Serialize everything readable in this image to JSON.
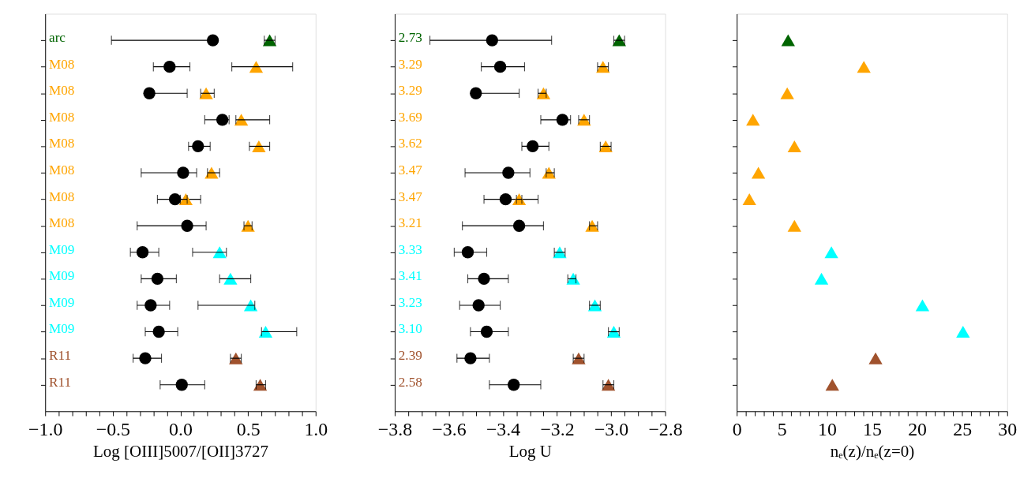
{
  "chart_data": [
    {
      "type": "scatter",
      "orientation": "horizontal",
      "xlabel": "Log [OIII]5007/[OII]3727",
      "tick_labels": "x",
      "grid": false,
      "categories": [
        "arc",
        "M08",
        "M08",
        "M08",
        "M08",
        "M08",
        "M08",
        "M08",
        "M09",
        "M09",
        "M09",
        "M09",
        "R11",
        "R11"
      ],
      "xlim": [
        -1.0,
        1.0
      ],
      "xticks": [
        {
          "value": -1.0,
          "label": "−1.0"
        },
        {
          "value": -0.9,
          "label": null
        },
        {
          "value": -0.8,
          "label": null
        },
        {
          "value": -0.7,
          "label": null
        },
        {
          "value": -0.6,
          "label": null
        },
        {
          "value": -0.5,
          "label": "−0.5"
        },
        {
          "value": -0.4,
          "label": null
        },
        {
          "value": -0.3,
          "label": null
        },
        {
          "value": -0.2,
          "label": null
        },
        {
          "value": -0.1,
          "label": null
        },
        {
          "value": 0.0,
          "label": "0.0"
        },
        {
          "value": 0.1,
          "label": null
        },
        {
          "value": 0.2,
          "label": null
        },
        {
          "value": 0.3,
          "label": null
        },
        {
          "value": 0.4,
          "label": null
        },
        {
          "value": 0.5,
          "label": "0.5"
        },
        {
          "value": 0.6,
          "label": null
        },
        {
          "value": 0.7,
          "label": null
        },
        {
          "value": 0.8,
          "label": null
        },
        {
          "value": 0.9,
          "label": null
        },
        {
          "value": 1.0,
          "label": "1.0"
        }
      ],
      "series": [
        {
          "color": "#000000",
          "marker": "circle",
          "values": [
            0.24,
            -0.08,
            -0.23,
            0.31,
            0.13,
            0.02,
            -0.04,
            0.05,
            -0.28,
            -0.17,
            -0.22,
            -0.16,
            -0.26,
            0.01
          ],
          "errors": [
            [
              -0.51,
              0.24
            ],
            [
              -0.2,
              0.07
            ],
            [
              -0.23,
              0.05
            ],
            [
              0.18,
              0.36
            ],
            [
              0.06,
              0.22
            ],
            [
              -0.29,
              0.12
            ],
            [
              -0.17,
              0.15
            ],
            [
              -0.32,
              0.19
            ],
            [
              -0.37,
              -0.16
            ],
            [
              -0.29,
              -0.03
            ],
            [
              -0.32,
              -0.08
            ],
            [
              -0.26,
              -0.02
            ],
            [
              -0.35,
              -0.14
            ],
            [
              -0.15,
              0.18
            ]
          ]
        },
        {
          "marker": "triangle",
          "colors": [
            "#006400",
            "#ffa500",
            "#ffa500",
            "#ffa500",
            "#ffa500",
            "#ffa500",
            "#ffa500",
            "#ffa500",
            "#00ffff",
            "#00ffff",
            "#00ffff",
            "#00ffff",
            "#a0522d",
            "#a0522d"
          ],
          "values": [
            0.66,
            0.56,
            0.19,
            0.45,
            0.58,
            0.23,
            0.04,
            0.5,
            0.29,
            0.37,
            0.52,
            0.63,
            0.41,
            0.59
          ],
          "errors": [
            [
              0.62,
              0.7
            ],
            [
              0.38,
              0.83
            ],
            [
              0.15,
              0.25
            ],
            [
              0.41,
              0.66
            ],
            [
              0.51,
              0.66
            ],
            [
              0.2,
              0.29
            ],
            [
              0.0,
              0.05
            ],
            [
              0.47,
              0.53
            ],
            [
              0.09,
              0.34
            ],
            [
              0.29,
              0.52
            ],
            [
              0.13,
              0.55
            ],
            [
              0.6,
              0.86
            ],
            [
              0.37,
              0.45
            ],
            [
              0.56,
              0.63
            ]
          ]
        }
      ]
    },
    {
      "type": "scatter",
      "orientation": "horizontal",
      "xlabel": "Log U",
      "tick_labels": "x",
      "grid": false,
      "categories": [
        "2.73",
        "3.29",
        "3.29",
        "3.69",
        "3.62",
        "3.47",
        "3.47",
        "3.21",
        "3.33",
        "3.41",
        "3.23",
        "3.10",
        "2.39",
        "2.58"
      ],
      "xlim": [
        -3.8,
        -2.8
      ],
      "xticks": [
        {
          "value": -3.8,
          "label": "−3.8"
        },
        {
          "value": -3.75,
          "label": null
        },
        {
          "value": -3.7,
          "label": null
        },
        {
          "value": -3.65,
          "label": null
        },
        {
          "value": -3.6,
          "label": "−3.6"
        },
        {
          "value": -3.55,
          "label": null
        },
        {
          "value": -3.5,
          "label": null
        },
        {
          "value": -3.45,
          "label": null
        },
        {
          "value": -3.4,
          "label": "−3.4"
        },
        {
          "value": -3.35,
          "label": null
        },
        {
          "value": -3.3,
          "label": null
        },
        {
          "value": -3.25,
          "label": null
        },
        {
          "value": -3.2,
          "label": "−3.2"
        },
        {
          "value": -3.15,
          "label": null
        },
        {
          "value": -3.1,
          "label": null
        },
        {
          "value": -3.05,
          "label": null
        },
        {
          "value": -3.0,
          "label": "−3.0"
        },
        {
          "value": -2.95,
          "label": null
        },
        {
          "value": -2.9,
          "label": null
        },
        {
          "value": -2.85,
          "label": null
        },
        {
          "value": -2.8,
          "label": "−2.8"
        }
      ],
      "series": [
        {
          "color": "#000000",
          "marker": "circle",
          "values": [
            -3.44,
            -3.41,
            -3.5,
            -3.18,
            -3.29,
            -3.38,
            -3.39,
            -3.34,
            -3.53,
            -3.47,
            -3.49,
            -3.46,
            -3.52,
            -3.36
          ],
          "errors": [
            [
              -3.67,
              -3.22
            ],
            [
              -3.48,
              -3.32
            ],
            [
              -3.5,
              -3.34
            ],
            [
              -3.26,
              -3.15
            ],
            [
              -3.33,
              -3.23
            ],
            [
              -3.54,
              -3.3
            ],
            [
              -3.47,
              -3.27
            ],
            [
              -3.55,
              -3.25
            ],
            [
              -3.58,
              -3.46
            ],
            [
              -3.53,
              -3.38
            ],
            [
              -3.56,
              -3.41
            ],
            [
              -3.52,
              -3.38
            ],
            [
              -3.57,
              -3.45
            ],
            [
              -3.45,
              -3.26
            ]
          ]
        },
        {
          "marker": "triangle",
          "colors": [
            "#006400",
            "#ffa500",
            "#ffa500",
            "#ffa500",
            "#ffa500",
            "#ffa500",
            "#ffa500",
            "#ffa500",
            "#00ffff",
            "#00ffff",
            "#00ffff",
            "#00ffff",
            "#a0522d",
            "#a0522d"
          ],
          "values": [
            -2.97,
            -3.03,
            -3.25,
            -3.1,
            -3.02,
            -3.23,
            -3.34,
            -3.07,
            -3.19,
            -3.14,
            -3.06,
            -2.99,
            -3.12,
            -3.01
          ],
          "errors": [
            [
              -2.99,
              -2.95
            ],
            [
              -3.05,
              -3.01
            ],
            [
              -3.27,
              -3.24
            ],
            [
              -3.12,
              -3.08
            ],
            [
              -3.04,
              -3.0
            ],
            [
              -3.24,
              -3.21
            ],
            [
              -3.35,
              -3.33
            ],
            [
              -3.08,
              -3.05
            ],
            [
              -3.21,
              -3.17
            ],
            [
              -3.16,
              -3.13
            ],
            [
              -3.08,
              -3.04
            ],
            [
              -3.01,
              -2.97
            ],
            [
              -3.14,
              -3.1
            ],
            [
              -3.03,
              -2.99
            ]
          ]
        }
      ]
    },
    {
      "type": "scatter",
      "orientation": "horizontal",
      "xlabel": "nₑ(z)/nₑ(z=0)",
      "tick_labels": "x",
      "grid": false,
      "categories": [
        null,
        null,
        null,
        null,
        null,
        null,
        null,
        null,
        null,
        null,
        null,
        null,
        null,
        null
      ],
      "xlim": [
        0,
        30
      ],
      "xticks": [
        0,
        {
          "value": 1,
          "label": null
        },
        {
          "value": 2,
          "label": null
        },
        {
          "value": 3,
          "label": null
        },
        {
          "value": 4,
          "label": null
        },
        5,
        {
          "value": 6,
          "label": null
        },
        {
          "value": 7,
          "label": null
        },
        {
          "value": 8,
          "label": null
        },
        {
          "value": 9,
          "label": null
        },
        10,
        {
          "value": 11,
          "label": null
        },
        {
          "value": 12,
          "label": null
        },
        {
          "value": 13,
          "label": null
        },
        {
          "value": 14,
          "label": null
        },
        15,
        {
          "value": 16,
          "label": null
        },
        {
          "value": 17,
          "label": null
        },
        {
          "value": 18,
          "label": null
        },
        {
          "value": 19,
          "label": null
        },
        20,
        {
          "value": 21,
          "label": null
        },
        {
          "value": 22,
          "label": null
        },
        {
          "value": 23,
          "label": null
        },
        {
          "value": 24,
          "label": null
        },
        25,
        {
          "value": 26,
          "label": null
        },
        {
          "value": 27,
          "label": null
        },
        {
          "value": 28,
          "label": null
        },
        {
          "value": 29,
          "label": null
        },
        30
      ],
      "series": [
        {
          "marker": "triangle",
          "colors": [
            "#006400",
            "#ffa500",
            "#ffa500",
            "#ffa500",
            "#ffa500",
            "#ffa500",
            "#ffa500",
            "#ffa500",
            "#00ffff",
            "#00ffff",
            "#00ffff",
            "#00ffff",
            "#a0522d",
            "#a0522d"
          ],
          "values": [
            5.7,
            14.1,
            5.6,
            1.8,
            6.4,
            2.4,
            1.4,
            6.4,
            10.5,
            9.4,
            20.6,
            25.1,
            15.4,
            10.6
          ]
        }
      ]
    }
  ]
}
